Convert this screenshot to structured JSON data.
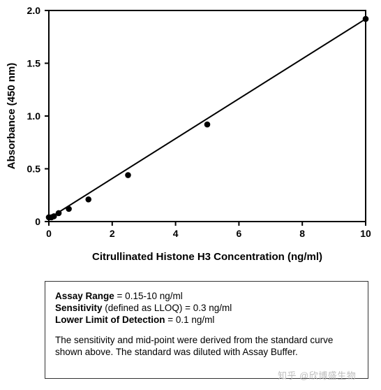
{
  "chart_data": {
    "type": "scatter",
    "title": "",
    "xlabel": "Citrullinated Histone H3 Concentration (ng/ml)",
    "ylabel": "Absorbance (450 nm)",
    "xlim": [
      0,
      10
    ],
    "ylim": [
      0,
      2.0
    ],
    "x_ticks": [
      "0",
      "2",
      "4",
      "6",
      "8",
      "10"
    ],
    "y_ticks": [
      "0",
      "0.5",
      "1.0",
      "1.5",
      "2.0"
    ],
    "grid": false,
    "points": [
      {
        "x": 0,
        "y": 0.04
      },
      {
        "x": 0.08,
        "y": 0.04
      },
      {
        "x": 0.16,
        "y": 0.05
      },
      {
        "x": 0.31,
        "y": 0.08
      },
      {
        "x": 0.63,
        "y": 0.12
      },
      {
        "x": 1.25,
        "y": 0.21
      },
      {
        "x": 2.5,
        "y": 0.44
      },
      {
        "x": 5,
        "y": 0.92
      },
      {
        "x": 10,
        "y": 1.92
      }
    ],
    "fit_line": [
      {
        "x": 0,
        "y": 0.03
      },
      {
        "x": 10,
        "y": 1.92
      }
    ]
  },
  "info": {
    "range_label": "Assay Range",
    "range_value": " = 0.15-10 ng/ml",
    "sensitivity_label": "Sensitivity",
    "sensitivity_value": " (defined as LLOQ) = 0.3 ng/ml",
    "lld_label": "Lower Limit of Detection",
    "lld_value": " = 0.1 ng/ml",
    "note": "The sensitivity and mid-point were derived from the standard curve shown above. The standard was diluted with Assay Buffer."
  },
  "watermark": "知乎 @欣博盛生物"
}
